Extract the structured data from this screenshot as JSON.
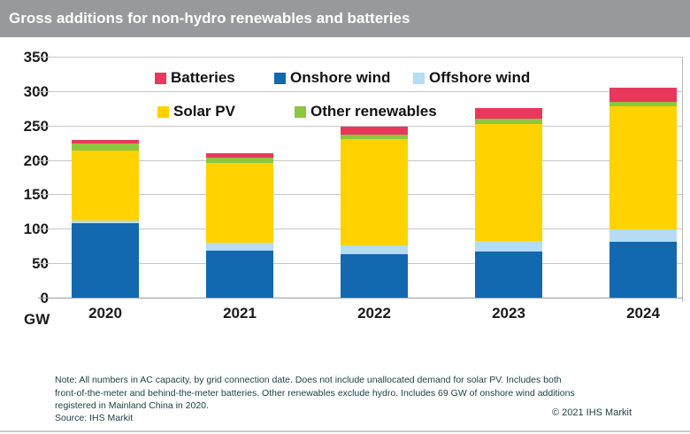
{
  "header": {
    "title": "Gross additions for non-hydro renewables and batteries"
  },
  "chart_data": {
    "type": "bar",
    "stacked": true,
    "title": "Gross additions for non-hydro renewables and batteries",
    "unit_label": "GW",
    "categories": [
      "2020",
      "2021",
      "2022",
      "2023",
      "2024"
    ],
    "series": [
      {
        "name": "Onshore wind",
        "color": "#1269B0",
        "values": [
          108,
          68,
          63,
          67,
          81
        ]
      },
      {
        "name": "Offshore wind",
        "color": "#B5DCF4",
        "values": [
          4,
          12,
          13,
          15,
          18
        ]
      },
      {
        "name": "Solar PV",
        "color": "#FFD200",
        "values": [
          102,
          116,
          154,
          170,
          179
        ]
      },
      {
        "name": "Other renewables",
        "color": "#8DC63F",
        "values": [
          10,
          8,
          7,
          8,
          7
        ]
      },
      {
        "name": "Batteries",
        "color": "#E8385C",
        "values": [
          5,
          6,
          12,
          15,
          20
        ]
      }
    ],
    "totals": [
      229,
      210,
      249,
      275,
      305
    ],
    "legend": [
      {
        "label": "Batteries",
        "color": "#E8385C"
      },
      {
        "label": "Onshore wind",
        "color": "#1269B0"
      },
      {
        "label": "Offshore wind",
        "color": "#B5DCF4"
      },
      {
        "label": "Solar PV",
        "color": "#FFD200"
      },
      {
        "label": "Other renewables",
        "color": "#8DC63F"
      }
    ],
    "ylim": [
      0,
      350
    ],
    "yticks": [
      0,
      50,
      100,
      150,
      200,
      250,
      300,
      350
    ],
    "grid": "horizontal",
    "legend_position": "top-inside"
  },
  "footer": {
    "note_lines": [
      "Note: All numbers in AC capacity, by grid connection date. Does not include unallocated demand for solar PV. Includes both",
      "front-of-the-meter and behind-the-meter batteries. Other renewables exclude hydro. Includes 69 GW of onshore wind additions",
      "registered in Mainland China in 2020."
    ],
    "source": "Source: IHS Markit",
    "copyright": "© 2021 IHS Markit"
  }
}
